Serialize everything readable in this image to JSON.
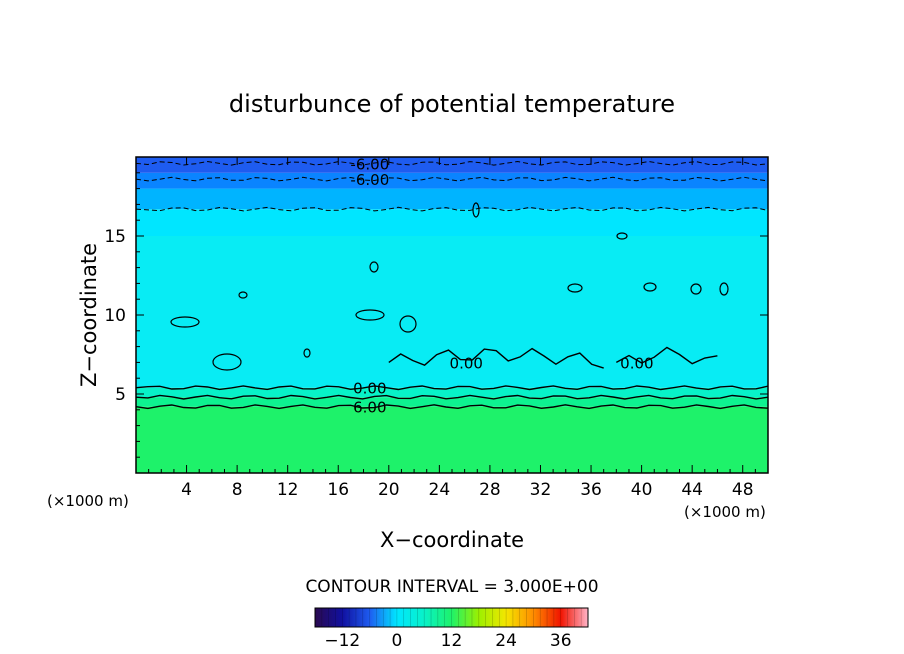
{
  "chart_data": {
    "type": "heatmap",
    "title": "disturbunce of potential temperature",
    "xlabel": "X−coordinate",
    "ylabel": "Z−coordinate",
    "x_unit": "(×1000 m)",
    "y_unit": "(×1000 m)",
    "xlim": [
      0,
      50
    ],
    "ylim": [
      0,
      20
    ],
    "xticks": [
      4,
      8,
      12,
      16,
      20,
      24,
      28,
      32,
      36,
      40,
      44,
      48
    ],
    "yticks": [
      5,
      10,
      15
    ],
    "xtick_labels": [
      "4",
      "8",
      "12",
      "16",
      "20",
      "24",
      "28",
      "32",
      "36",
      "40",
      "44",
      "48"
    ],
    "ytick_labels": [
      "5",
      "10",
      "15"
    ],
    "field_layers": [
      {
        "z_from": 0,
        "z_to": 4.2,
        "value": 9,
        "color": "#1ef26a"
      },
      {
        "z_from": 4.2,
        "z_to": 4.8,
        "value": 6,
        "color": "#0ef290"
      },
      {
        "z_from": 4.8,
        "z_to": 5.4,
        "value": 3,
        "color": "#08f2c8"
      },
      {
        "z_from": 5.4,
        "z_to": 15.0,
        "value": 0,
        "color": "#08ecf4"
      },
      {
        "z_from": 15.0,
        "z_to": 16.7,
        "value": -1,
        "color": "#00e6ff"
      },
      {
        "z_from": 16.7,
        "z_to": 18.0,
        "value": -3,
        "color": "#00b4ff"
      },
      {
        "z_from": 18.0,
        "z_to": 19.0,
        "value": -6,
        "color": "#0a84ff"
      },
      {
        "z_from": 19.0,
        "z_to": 20.0,
        "value": -9,
        "color": "#1e5cf0"
      }
    ],
    "contours": [
      {
        "value": 6.0,
        "label": "6.00",
        "style": "solid",
        "z": 4.2
      },
      {
        "value": 3.0,
        "label": "",
        "style": "solid",
        "z": 4.8
      },
      {
        "value": 0.0,
        "label": "0.00",
        "style": "solid",
        "z": 5.4
      },
      {
        "value": 0.0,
        "label": "0.00",
        "style": "solid",
        "z": 7.0,
        "x_from": 20,
        "x_to": 37
      },
      {
        "value": 0.0,
        "label": "0.00",
        "style": "solid",
        "z": 7.0,
        "x_from": 38,
        "x_to": 46
      },
      {
        "value": -3.0,
        "label": "",
        "style": "dashed",
        "z": 16.7
      },
      {
        "value": -6.0,
        "label": "6.00",
        "style": "dashed",
        "z": 18.6
      },
      {
        "value": -6.0,
        "label": "6.00",
        "style": "dashed",
        "z": 19.6
      }
    ],
    "contour_interval_text": "CONTOUR INTERVAL = 3.000E+00",
    "colorbar": {
      "range": [
        -18,
        42
      ],
      "tick_values": [
        -12,
        0,
        12,
        24,
        36
      ],
      "tick_labels": [
        "−12",
        "0",
        "12",
        "24",
        "36"
      ]
    }
  }
}
